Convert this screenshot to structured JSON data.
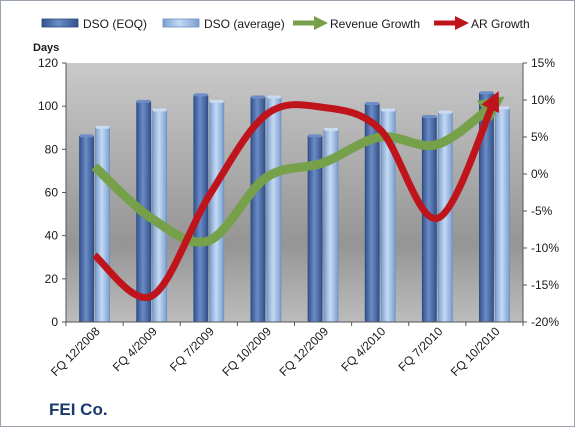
{
  "chart_data": {
    "type": "bar",
    "categories": [
      "FQ 12/2008",
      "FQ 4/2009",
      "FQ 7/2009",
      "FQ 10/2009",
      "FQ 12/2009",
      "FQ 4/2010",
      "FQ 7/2010",
      "FQ 10/2010"
    ],
    "series": [
      {
        "name": "DSO (EOQ)",
        "type": "bar",
        "axis": "left",
        "color": "#4f6fa8",
        "values": [
          86,
          102,
          105,
          104,
          86,
          101,
          95,
          106
        ]
      },
      {
        "name": "DSO (average)",
        "type": "bar",
        "axis": "left",
        "color": "#9dbbe0",
        "values": [
          90,
          98,
          102,
          104,
          89,
          98,
          97,
          99
        ]
      },
      {
        "name": "Revenue Growth",
        "type": "line",
        "axis": "right",
        "color": "#77a04a",
        "values": [
          1,
          -6,
          -9,
          -0.5,
          1.5,
          5,
          4,
          9.5
        ]
      },
      {
        "name": "AR Growth",
        "type": "line",
        "axis": "right",
        "color": "#c0141c",
        "values": [
          -11,
          -16.5,
          -3,
          8,
          9,
          6,
          -6,
          10
        ]
      }
    ],
    "ylabel": "Days",
    "ylim": [
      0,
      120
    ],
    "yticks": [
      "0",
      "20",
      "40",
      "60",
      "80",
      "100",
      "120"
    ],
    "y2lim": [
      -20,
      15
    ],
    "y2ticks": [
      "-20%",
      "-15%",
      "-10%",
      "-5%",
      "0%",
      "5%",
      "10%",
      "15%"
    ],
    "legend": "top",
    "grid": false,
    "company": "FEI Co."
  }
}
